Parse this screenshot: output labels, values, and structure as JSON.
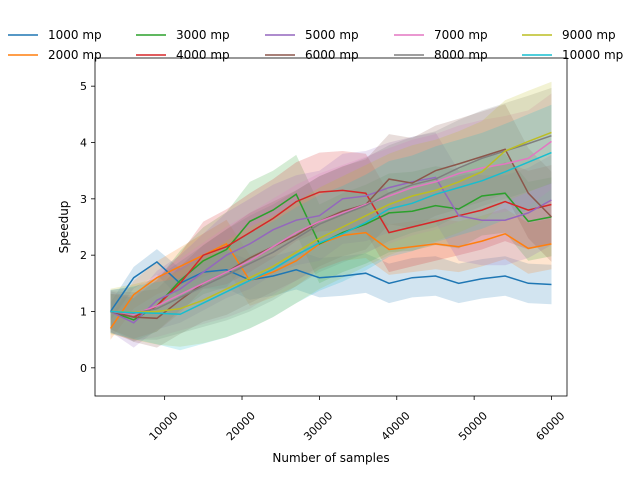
{
  "chart_data": {
    "type": "line",
    "title": "",
    "xlabel": "Number of samples",
    "ylabel": "Speedup",
    "xlim": [
      1000,
      62000
    ],
    "ylim": [
      -0.5,
      5.5
    ],
    "xticks": [
      10000,
      20000,
      30000,
      40000,
      50000,
      60000
    ],
    "yticks": [
      0,
      1,
      2,
      3,
      4,
      5
    ],
    "grid": false,
    "legend_position": "top, outside plot, 5 columns",
    "shaded_band": "confidence band around each series",
    "x": [
      3000,
      6000,
      9000,
      12000,
      15000,
      18000,
      21000,
      24000,
      27000,
      30000,
      33000,
      36000,
      39000,
      42000,
      45000,
      48000,
      51000,
      54000,
      57000,
      60000
    ],
    "series": [
      {
        "name": "1000 mp",
        "color": "#1f77b4",
        "band": 0.35,
        "values": [
          1.0,
          1.6,
          1.88,
          1.5,
          1.7,
          1.74,
          1.56,
          1.63,
          1.74,
          1.6,
          1.63,
          1.68,
          1.5,
          1.6,
          1.63,
          1.5,
          1.58,
          1.63,
          1.5,
          1.48
        ]
      },
      {
        "name": "2000 mp",
        "color": "#ff7f0e",
        "band": 0.45,
        "values": [
          0.7,
          1.3,
          1.6,
          1.8,
          2.0,
          2.2,
          1.55,
          1.7,
          1.9,
          2.2,
          2.35,
          2.4,
          2.1,
          2.15,
          2.2,
          2.15,
          2.25,
          2.38,
          2.12,
          2.2
        ]
      },
      {
        "name": "3000 mp",
        "color": "#2ca02c",
        "band": 0.7,
        "values": [
          1.0,
          0.85,
          1.1,
          1.55,
          1.9,
          2.1,
          2.6,
          2.8,
          3.08,
          2.2,
          2.4,
          2.55,
          2.75,
          2.78,
          2.88,
          2.82,
          3.05,
          3.1,
          2.6,
          2.68
        ]
      },
      {
        "name": "4000 mp",
        "color": "#d62728",
        "band": 0.7,
        "values": [
          1.0,
          0.9,
          1.1,
          1.5,
          2.0,
          2.15,
          2.4,
          2.65,
          2.95,
          3.12,
          3.15,
          3.1,
          2.4,
          2.5,
          2.6,
          2.7,
          2.8,
          2.95,
          2.8,
          2.9
        ]
      },
      {
        "name": "5000 mp",
        "color": "#9467bd",
        "band": 0.8,
        "values": [
          1.0,
          0.8,
          1.2,
          1.4,
          1.7,
          2.0,
          2.2,
          2.45,
          2.62,
          2.7,
          3.0,
          3.05,
          3.2,
          3.3,
          3.38,
          2.7,
          2.62,
          2.62,
          2.75,
          2.98
        ]
      },
      {
        "name": "6000 mp",
        "color": "#8c564b",
        "band": 0.8,
        "values": [
          1.0,
          0.9,
          0.88,
          1.2,
          1.5,
          1.7,
          1.95,
          2.15,
          2.35,
          2.6,
          2.78,
          2.9,
          3.35,
          3.28,
          3.5,
          3.62,
          3.75,
          3.88,
          3.1,
          2.68
        ]
      },
      {
        "name": "7000 mp",
        "color": "#e377c2",
        "band": 0.85,
        "values": [
          1.0,
          0.95,
          1.1,
          1.3,
          1.5,
          1.7,
          1.9,
          2.15,
          2.4,
          2.6,
          2.75,
          2.9,
          3.05,
          3.2,
          3.3,
          3.45,
          3.55,
          3.62,
          3.72,
          4.02
        ]
      },
      {
        "name": "8000 mp",
        "color": "#7f7f7f",
        "band": 0.85,
        "values": [
          1.0,
          0.97,
          1.05,
          1.25,
          1.45,
          1.65,
          1.85,
          2.05,
          2.3,
          2.55,
          2.72,
          2.88,
          3.1,
          3.25,
          3.35,
          3.55,
          3.72,
          3.85,
          3.98,
          4.12
        ]
      },
      {
        "name": "9000 mp",
        "color": "#bcbd22",
        "band": 0.9,
        "values": [
          1.0,
          0.99,
          1.0,
          1.05,
          1.2,
          1.4,
          1.6,
          1.8,
          2.05,
          2.3,
          2.5,
          2.7,
          2.9,
          3.05,
          3.15,
          3.3,
          3.48,
          3.85,
          4.02,
          4.18
        ]
      },
      {
        "name": "10000 mp",
        "color": "#17becf",
        "band": 0.85,
        "values": [
          1.0,
          0.98,
          0.97,
          0.95,
          1.15,
          1.35,
          1.55,
          1.75,
          2.0,
          2.22,
          2.38,
          2.58,
          2.82,
          2.92,
          3.08,
          3.2,
          3.32,
          3.48,
          3.65,
          3.82
        ]
      }
    ]
  }
}
